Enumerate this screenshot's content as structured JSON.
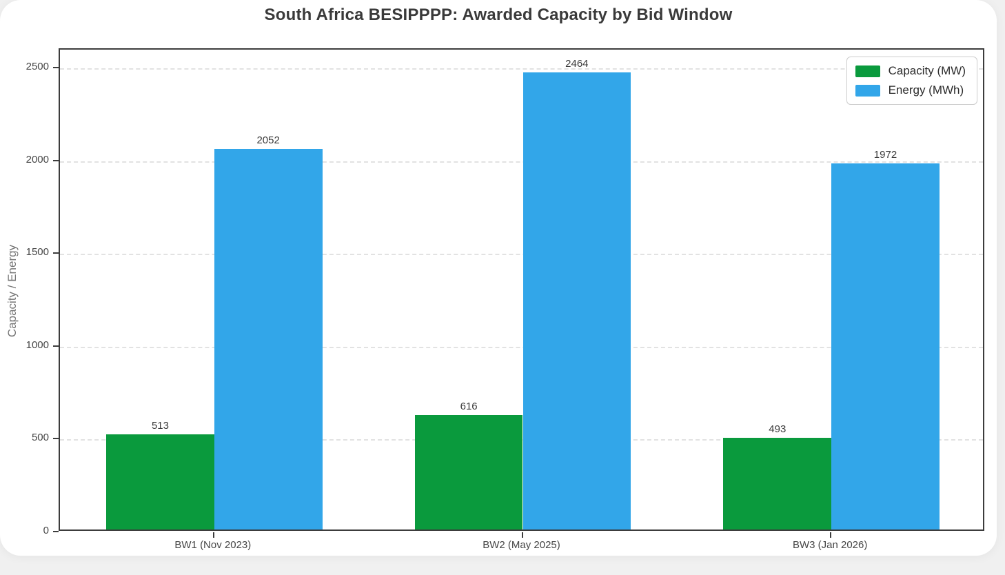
{
  "page": {
    "background_color": "#f0f0f0",
    "card_color": "#ffffff"
  },
  "chart_data": {
    "type": "bar",
    "title": "South Africa BESIPPPP: Awarded Capacity by Bid Window",
    "xlabel": "",
    "ylabel": "Capacity / Energy",
    "categories": [
      "BW1 (Nov 2023)",
      "BW2 (May 2025)",
      "BW3 (Jan 2026)"
    ],
    "series": [
      {
        "name": "Capacity (MW)",
        "color": "#0a9a3d",
        "values": [
          513,
          616,
          493
        ]
      },
      {
        "name": "Energy (MWh)",
        "color": "#32a6e9",
        "values": [
          2052,
          2464,
          1972
        ]
      }
    ],
    "bar_value_labels": [
      [
        "513",
        "616",
        "493"
      ],
      [
        "2052",
        "2464",
        "1972"
      ]
    ],
    "ylim": [
      0,
      2600
    ],
    "yticks": [
      "0",
      "500",
      "1000",
      "1500",
      "2000",
      "2500"
    ],
    "grid": "horizontal-dashed",
    "gridline_color": "#e2e2e2",
    "spine_color": "#3c3c3c",
    "legend_position": "upper-right",
    "legend_border_color": "#cccccc",
    "title_color": "#3a3a3a",
    "axis_text_color": "#454545",
    "ylabel_color": "#767676"
  }
}
